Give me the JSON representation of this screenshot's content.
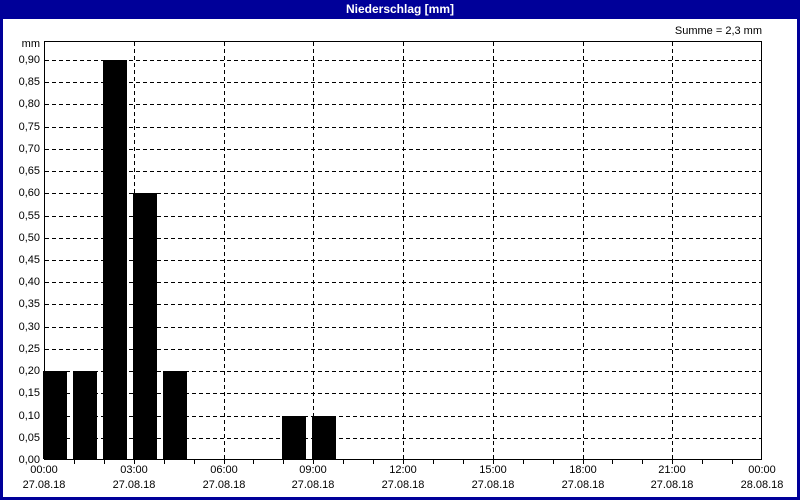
{
  "window": {
    "title": "Niederschlag [mm]"
  },
  "chart_data": {
    "type": "bar",
    "title": "Niederschlag [mm]",
    "sum_label": "Summe = 2,3 mm",
    "unit_label": "mm",
    "ylabel": "mm",
    "ylim": [
      0,
      0.943
    ],
    "ytick_step": 0.05,
    "grid": true,
    "background": "#ffffff",
    "bar_color": "#000000",
    "grid_color": "#000000",
    "axis_color": "#000000",
    "titlebar_color": "#000099",
    "frame_color": "#000099",
    "title_text_color": "#ffffff",
    "yticks": [
      {
        "value": 0.0,
        "label": "0,00"
      },
      {
        "value": 0.05,
        "label": "0,05"
      },
      {
        "value": 0.1,
        "label": "0,10"
      },
      {
        "value": 0.15,
        "label": "0,15"
      },
      {
        "value": 0.2,
        "label": "0,20"
      },
      {
        "value": 0.25,
        "label": "0,25"
      },
      {
        "value": 0.3,
        "label": "0,30"
      },
      {
        "value": 0.35,
        "label": "0,35"
      },
      {
        "value": 0.4,
        "label": "0,40"
      },
      {
        "value": 0.45,
        "label": "0,45"
      },
      {
        "value": 0.5,
        "label": "0,50"
      },
      {
        "value": 0.55,
        "label": "0,55"
      },
      {
        "value": 0.6,
        "label": "0,60"
      },
      {
        "value": 0.65,
        "label": "0,65"
      },
      {
        "value": 0.7,
        "label": "0,70"
      },
      {
        "value": 0.75,
        "label": "0,75"
      },
      {
        "value": 0.8,
        "label": "0,80"
      },
      {
        "value": 0.85,
        "label": "0,85"
      },
      {
        "value": 0.9,
        "label": "0,90"
      }
    ],
    "xticks": [
      {
        "hour": 0,
        "time": "00:00",
        "date": "27.08.18"
      },
      {
        "hour": 3,
        "time": "03:00",
        "date": "27.08.18"
      },
      {
        "hour": 6,
        "time": "06:00",
        "date": "27.08.18"
      },
      {
        "hour": 9,
        "time": "09:00",
        "date": "27.08.18"
      },
      {
        "hour": 12,
        "time": "12:00",
        "date": "27.08.18"
      },
      {
        "hour": 15,
        "time": "15:00",
        "date": "27.08.18"
      },
      {
        "hour": 18,
        "time": "18:00",
        "date": "27.08.18"
      },
      {
        "hour": 21,
        "time": "21:00",
        "date": "27.08.18"
      },
      {
        "hour": 24,
        "time": "00:00",
        "date": "28.08.18"
      }
    ],
    "bars": [
      {
        "hour_start": 0,
        "value": 0.2
      },
      {
        "hour_start": 1,
        "value": 0.2
      },
      {
        "hour_start": 2,
        "value": 0.9
      },
      {
        "hour_start": 3,
        "value": 0.6
      },
      {
        "hour_start": 4,
        "value": 0.2
      },
      {
        "hour_start": 8,
        "value": 0.1
      },
      {
        "hour_start": 9,
        "value": 0.1
      }
    ]
  }
}
